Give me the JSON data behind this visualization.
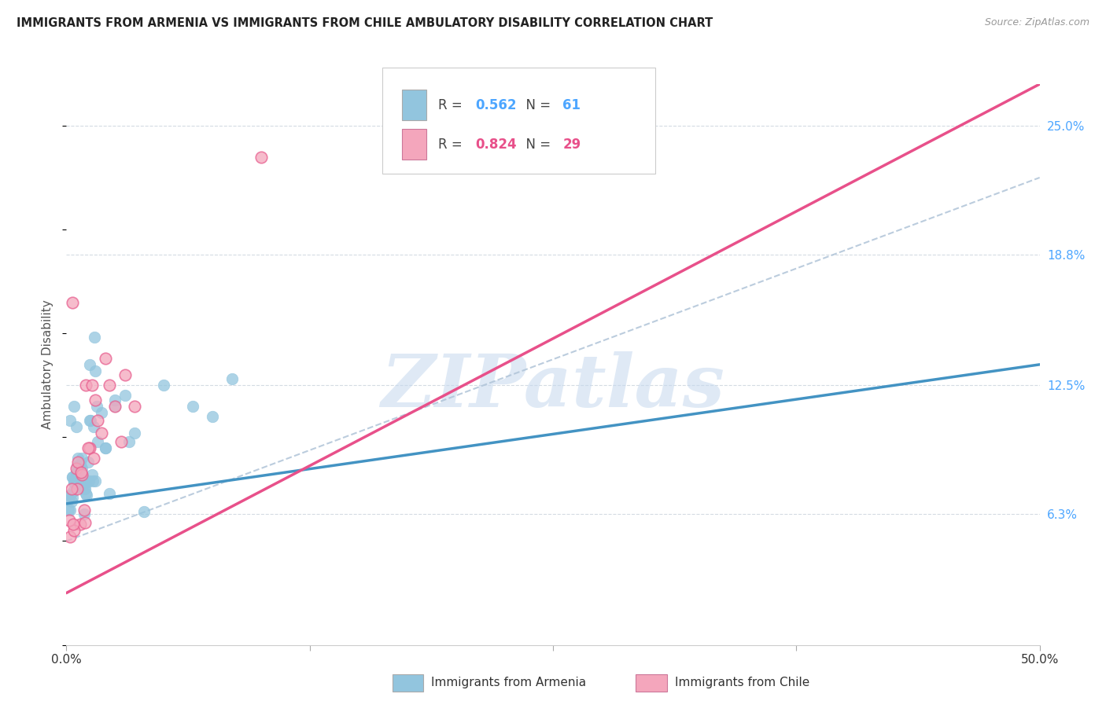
{
  "title": "IMMIGRANTS FROM ARMENIA VS IMMIGRANTS FROM CHILE AMBULATORY DISABILITY CORRELATION CHART",
  "source": "Source: ZipAtlas.com",
  "ylabel": "Ambulatory Disability",
  "y_tick_labels_right": [
    "6.3%",
    "12.5%",
    "18.8%",
    "25.0%"
  ],
  "y_tick_values_right": [
    6.3,
    12.5,
    18.8,
    25.0
  ],
  "x_min": 0.0,
  "x_max": 50.0,
  "y_min": 0.0,
  "y_max": 27.0,
  "armenia_color": "#92c5de",
  "armenia_edge_color": "#92c5de",
  "chile_color": "#f4a6bc",
  "chile_edge_color": "#e86090",
  "armenia_line_color": "#4393c3",
  "chile_line_color": "#e8508a",
  "dash_line_color": "#b0c4d8",
  "background_color": "#ffffff",
  "grid_color": "#d0d8e0",
  "watermark_text": "ZIPatlas",
  "watermark_color": "#c5d8ee",
  "legend_label_armenia": "Immigrants from Armenia",
  "legend_label_chile": "Immigrants from Chile",
  "legend_r_armenia": "0.562",
  "legend_n_armenia": "61",
  "legend_r_chile": "0.824",
  "legend_n_chile": "29",
  "armenia_scatter_x": [
    0.2,
    0.4,
    0.5,
    0.6,
    0.7,
    0.8,
    0.9,
    1.0,
    1.1,
    1.2,
    1.3,
    1.4,
    1.5,
    1.6,
    1.8,
    2.0,
    2.2,
    2.5,
    3.0,
    3.5,
    5.0,
    7.5,
    0.1,
    0.15,
    0.25,
    0.3,
    0.35,
    0.45,
    0.55,
    0.65,
    0.75,
    0.85,
    0.95,
    1.05,
    1.15,
    1.25,
    1.35,
    1.45,
    1.55,
    0.2,
    0.3,
    0.4,
    0.5,
    0.6,
    0.7,
    0.8,
    0.9,
    1.0,
    1.2,
    1.5,
    2.0,
    2.5,
    3.2,
    4.0,
    6.5,
    8.5,
    0.1,
    0.2,
    0.3,
    0.4,
    0.5
  ],
  "armenia_scatter_y": [
    10.8,
    11.5,
    10.5,
    8.0,
    8.5,
    9.0,
    7.5,
    7.8,
    8.8,
    13.5,
    8.2,
    10.5,
    13.2,
    9.8,
    11.2,
    9.5,
    7.3,
    11.5,
    12.0,
    10.2,
    12.5,
    11.0,
    7.0,
    7.2,
    6.9,
    7.1,
    7.4,
    8.0,
    8.6,
    7.6,
    8.0,
    7.8,
    7.5,
    7.2,
    7.9,
    10.8,
    7.9,
    14.8,
    11.5,
    6.5,
    8.1,
    7.8,
    8.3,
    9.0,
    8.7,
    8.5,
    6.3,
    7.3,
    10.8,
    7.9,
    9.5,
    11.8,
    9.8,
    6.4,
    11.5,
    12.8,
    6.5,
    7.2,
    8.1,
    7.8,
    8.3
  ],
  "chile_scatter_x": [
    0.2,
    0.5,
    0.7,
    0.9,
    1.0,
    1.2,
    1.5,
    1.8,
    2.0,
    2.5,
    3.0,
    0.3,
    0.6,
    1.4,
    2.8,
    0.4,
    0.8,
    1.6,
    3.5,
    0.15,
    0.35,
    0.55,
    0.75,
    0.95,
    1.1,
    2.2,
    10.0,
    0.25,
    1.3
  ],
  "chile_scatter_y": [
    5.2,
    8.5,
    5.8,
    6.5,
    12.5,
    9.5,
    11.8,
    10.2,
    13.8,
    11.5,
    13.0,
    16.5,
    8.8,
    9.0,
    9.8,
    5.5,
    8.2,
    10.8,
    11.5,
    6.0,
    5.8,
    7.5,
    8.3,
    5.9,
    9.5,
    12.5,
    23.5,
    7.5,
    12.5
  ],
  "armenia_trend_x0": 0.0,
  "armenia_trend_x1": 50.0,
  "armenia_trend_y0": 6.8,
  "armenia_trend_y1": 13.5,
  "chile_trend_x0": 0.0,
  "chile_trend_x1": 50.0,
  "chile_trend_y0": 2.5,
  "chile_trend_y1": 27.0,
  "dash_trend_x0": 0.0,
  "dash_trend_x1": 50.0,
  "dash_trend_y0": 5.0,
  "dash_trend_y1": 22.5
}
